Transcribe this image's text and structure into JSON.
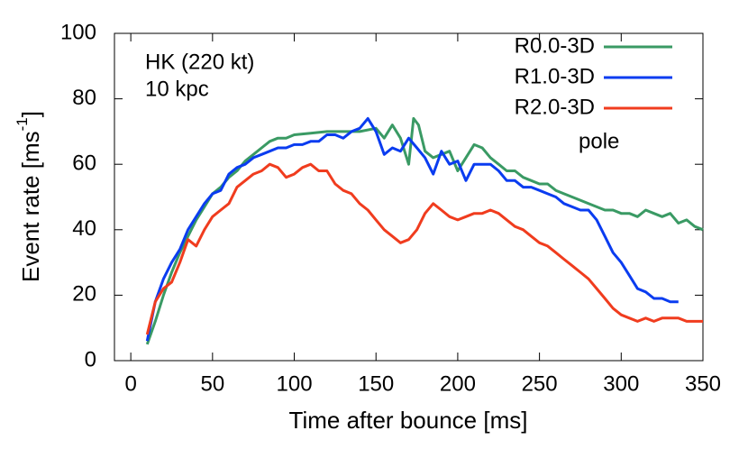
{
  "chart_data": {
    "type": "line",
    "ylabel": [
      "Event rate [ms",
      "-1",
      "]"
    ],
    "xlabel": "Time after bounce [ms]",
    "annotations": [
      "HK (220 kt)",
      "10 kpc",
      "pole"
    ],
    "xlim": [
      -10,
      350
    ],
    "xticks": [
      0,
      50,
      100,
      150,
      200,
      250,
      300,
      350
    ],
    "ylim": [
      0,
      100
    ],
    "yticks": [
      0,
      20,
      40,
      60,
      80,
      100
    ],
    "legend": "top right",
    "series": [
      {
        "name": "R0.0-3D",
        "color": "#3a9a64",
        "x": [
          10,
          15,
          20,
          25,
          30,
          35,
          40,
          45,
          50,
          55,
          60,
          65,
          70,
          75,
          80,
          85,
          90,
          95,
          100,
          110,
          120,
          130,
          140,
          150,
          155,
          160,
          165,
          170,
          173,
          176,
          180,
          185,
          190,
          195,
          200,
          205,
          210,
          215,
          220,
          225,
          230,
          235,
          240,
          245,
          250,
          255,
          260,
          265,
          270,
          275,
          280,
          285,
          290,
          295,
          300,
          305,
          310,
          315,
          320,
          325,
          330,
          335,
          340,
          345,
          350
        ],
        "values": [
          5,
          12,
          20,
          27,
          33,
          38,
          43,
          47,
          51,
          53,
          56,
          58,
          61,
          63,
          65,
          67,
          68,
          68,
          69,
          69.5,
          70,
          70,
          70,
          71,
          68,
          72,
          68,
          60,
          74,
          72,
          64,
          62,
          63,
          64,
          58,
          62,
          66,
          65,
          62,
          60,
          58,
          58,
          56,
          55,
          54,
          54,
          52,
          51,
          50,
          49,
          48,
          47,
          46,
          46,
          45,
          45,
          44,
          46,
          45,
          44,
          45,
          42,
          43,
          41,
          40
        ]
      },
      {
        "name": "R1.0-3D",
        "color": "#0a3cf0",
        "x": [
          10,
          15,
          20,
          25,
          30,
          35,
          40,
          45,
          50,
          55,
          60,
          65,
          70,
          75,
          80,
          85,
          90,
          95,
          100,
          105,
          110,
          115,
          120,
          125,
          130,
          135,
          140,
          145,
          150,
          155,
          160,
          165,
          170,
          175,
          180,
          185,
          190,
          195,
          200,
          205,
          210,
          215,
          220,
          225,
          230,
          235,
          240,
          245,
          250,
          255,
          260,
          265,
          270,
          275,
          280,
          285,
          290,
          295,
          300,
          305,
          310,
          315,
          320,
          325,
          330,
          335
        ],
        "values": [
          6,
          18,
          25,
          30,
          34,
          40,
          44,
          48,
          51,
          52,
          57,
          59,
          60,
          62,
          63,
          64,
          65,
          65,
          66,
          66,
          67,
          67,
          69,
          69,
          68,
          70,
          71,
          74,
          70,
          63,
          65,
          64,
          68,
          65,
          62,
          57,
          64,
          60,
          61,
          55,
          60,
          60,
          60,
          58,
          55,
          55,
          53,
          53,
          52,
          51,
          50,
          48,
          47,
          46,
          46,
          43,
          38,
          33,
          30,
          26,
          22,
          21,
          19,
          19,
          18,
          18
        ]
      },
      {
        "name": "R2.0-3D",
        "color": "#f03c1e",
        "x": [
          10,
          15,
          20,
          25,
          30,
          35,
          40,
          45,
          50,
          55,
          60,
          65,
          70,
          75,
          80,
          85,
          90,
          95,
          100,
          105,
          110,
          115,
          120,
          125,
          130,
          135,
          140,
          145,
          150,
          155,
          160,
          165,
          170,
          175,
          180,
          185,
          190,
          195,
          200,
          205,
          210,
          215,
          220,
          225,
          230,
          235,
          240,
          245,
          250,
          255,
          260,
          265,
          270,
          275,
          280,
          285,
          290,
          295,
          300,
          305,
          310,
          315,
          320,
          325,
          330,
          335,
          340,
          345,
          350
        ],
        "values": [
          8,
          18,
          22,
          24,
          30,
          37,
          35,
          40,
          44,
          46,
          48,
          53,
          55,
          57,
          58,
          60,
          59,
          56,
          57,
          59,
          60,
          58,
          58,
          54,
          52,
          51,
          48,
          46,
          43,
          40,
          38,
          36,
          37,
          40,
          45,
          48,
          46,
          44,
          43,
          44,
          45,
          45,
          46,
          45,
          43,
          41,
          40,
          38,
          36,
          35,
          33,
          31,
          29,
          27,
          25,
          22,
          19,
          16,
          14,
          13,
          12,
          13,
          12,
          13,
          13,
          13,
          12,
          12,
          12
        ]
      }
    ]
  }
}
